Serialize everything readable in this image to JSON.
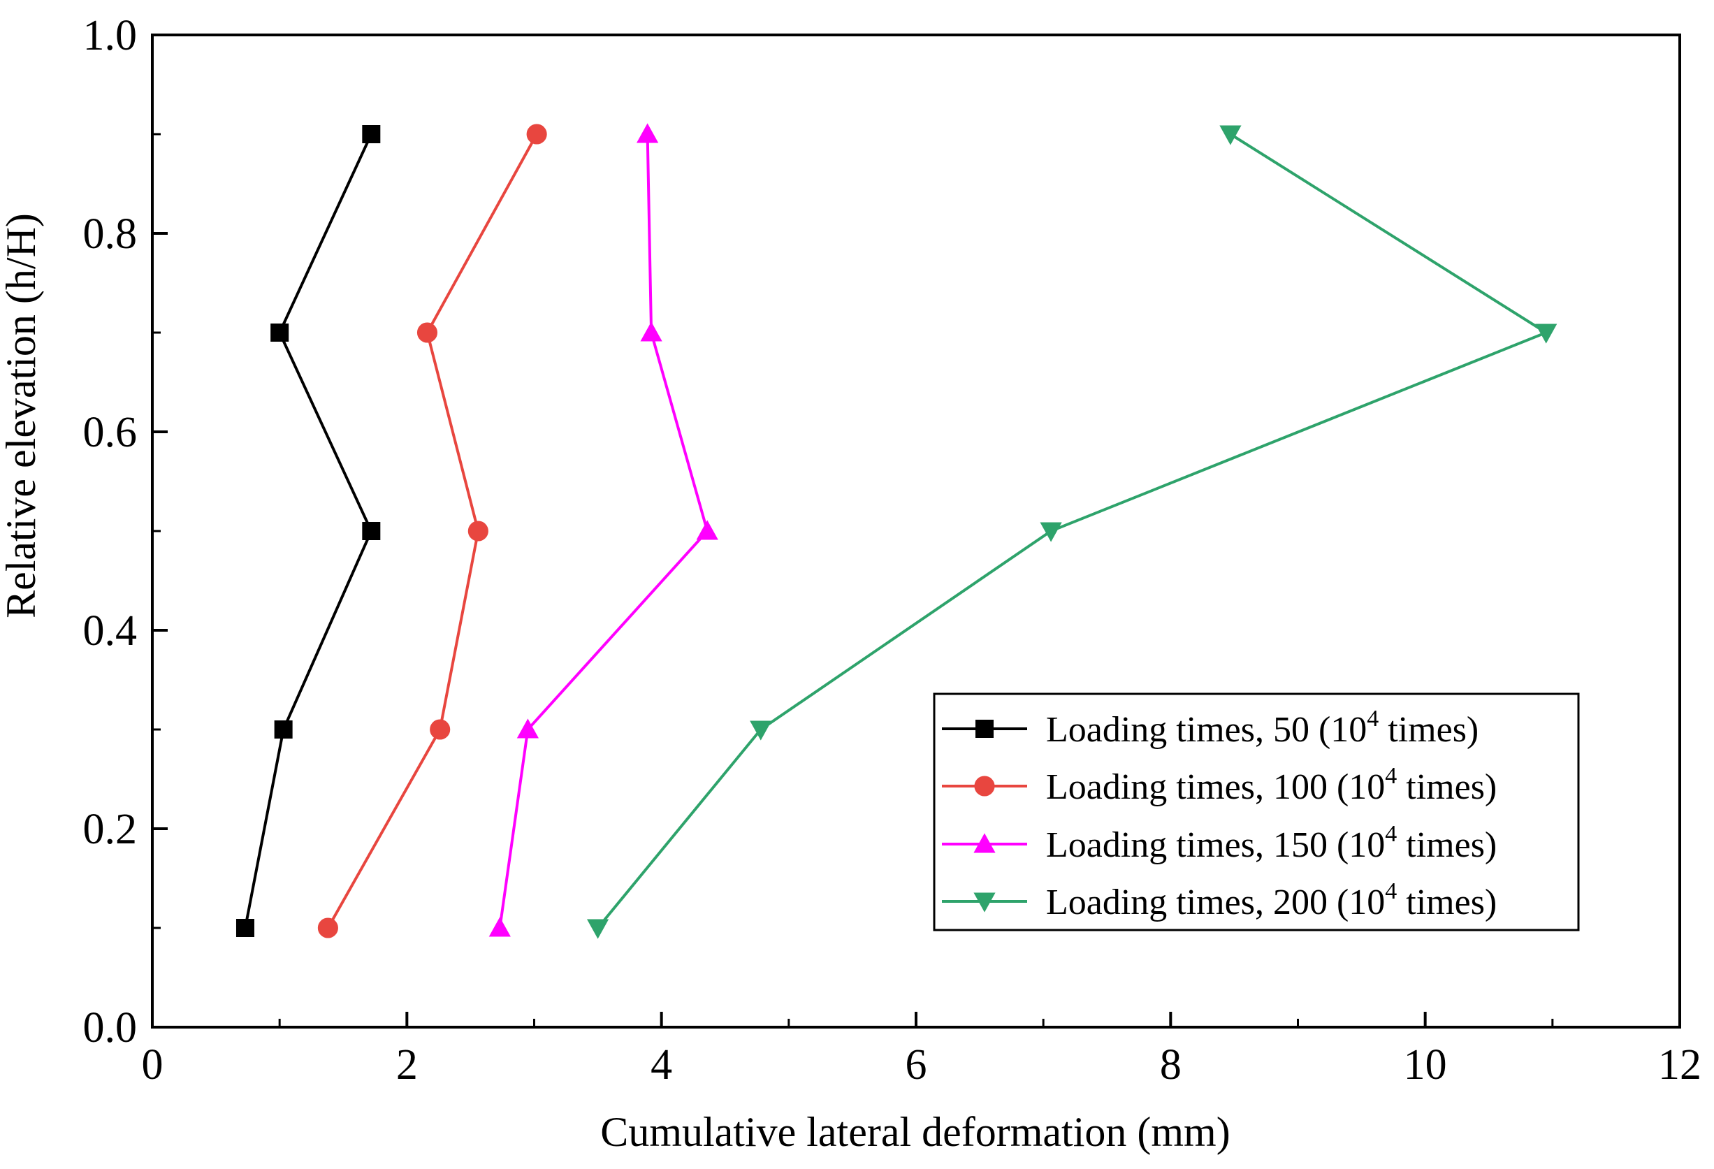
{
  "chart_data": {
    "type": "line",
    "title": "",
    "xlabel": "Cumulative lateral deformation (mm)",
    "ylabel": "Relative elevation (h/H)",
    "xlim": [
      0,
      12
    ],
    "ylim": [
      0.0,
      1.0
    ],
    "x_major_ticks": [
      0,
      2,
      4,
      6,
      8,
      10,
      12
    ],
    "x_tick_labels": [
      "0",
      "2",
      "4",
      "6",
      "8",
      "10",
      "12"
    ],
    "x_minor_ticks": [
      1,
      3,
      5,
      7,
      9,
      11
    ],
    "y_major_ticks": [
      0.0,
      0.2,
      0.4,
      0.6,
      0.8,
      1.0
    ],
    "y_tick_labels": [
      "0.0",
      "0.2",
      "0.4",
      "0.6",
      "0.8",
      "1.0"
    ],
    "y_minor_ticks": [
      0.1,
      0.3,
      0.5,
      0.7,
      0.9
    ],
    "grid": false,
    "legend_position": "bottom-right",
    "series": [
      {
        "name": "Loading times, 50 (10",
        "name_sup": "4",
        "name_suffix": " times)",
        "color": "#000000",
        "marker": "square",
        "x": [
          0.73,
          1.03,
          1.72,
          1.0,
          1.72
        ],
        "y": [
          0.1,
          0.3,
          0.5,
          0.7,
          0.9
        ]
      },
      {
        "name": "Loading times, 100 (10",
        "name_sup": "4",
        "name_suffix": "  times)",
        "color": "#e8463f",
        "marker": "circle",
        "x": [
          1.38,
          2.26,
          2.56,
          2.16,
          3.02
        ],
        "y": [
          0.1,
          0.3,
          0.5,
          0.7,
          0.9
        ]
      },
      {
        "name": "Loading times, 150 (10",
        "name_sup": "4",
        "name_suffix": " times)",
        "color": "#ff00ff",
        "marker": "triangle-up",
        "x": [
          2.73,
          2.95,
          4.36,
          3.92,
          3.89
        ],
        "y": [
          0.1,
          0.3,
          0.5,
          0.7,
          0.9
        ]
      },
      {
        "name": "Loading times, 200 (10",
        "name_sup": "4",
        "name_suffix": "  times)",
        "color": "#2ea36b",
        "marker": "triangle-down",
        "x": [
          3.5,
          4.78,
          7.06,
          10.95,
          8.47
        ],
        "y": [
          0.1,
          0.3,
          0.5,
          0.7,
          0.9
        ]
      }
    ]
  }
}
